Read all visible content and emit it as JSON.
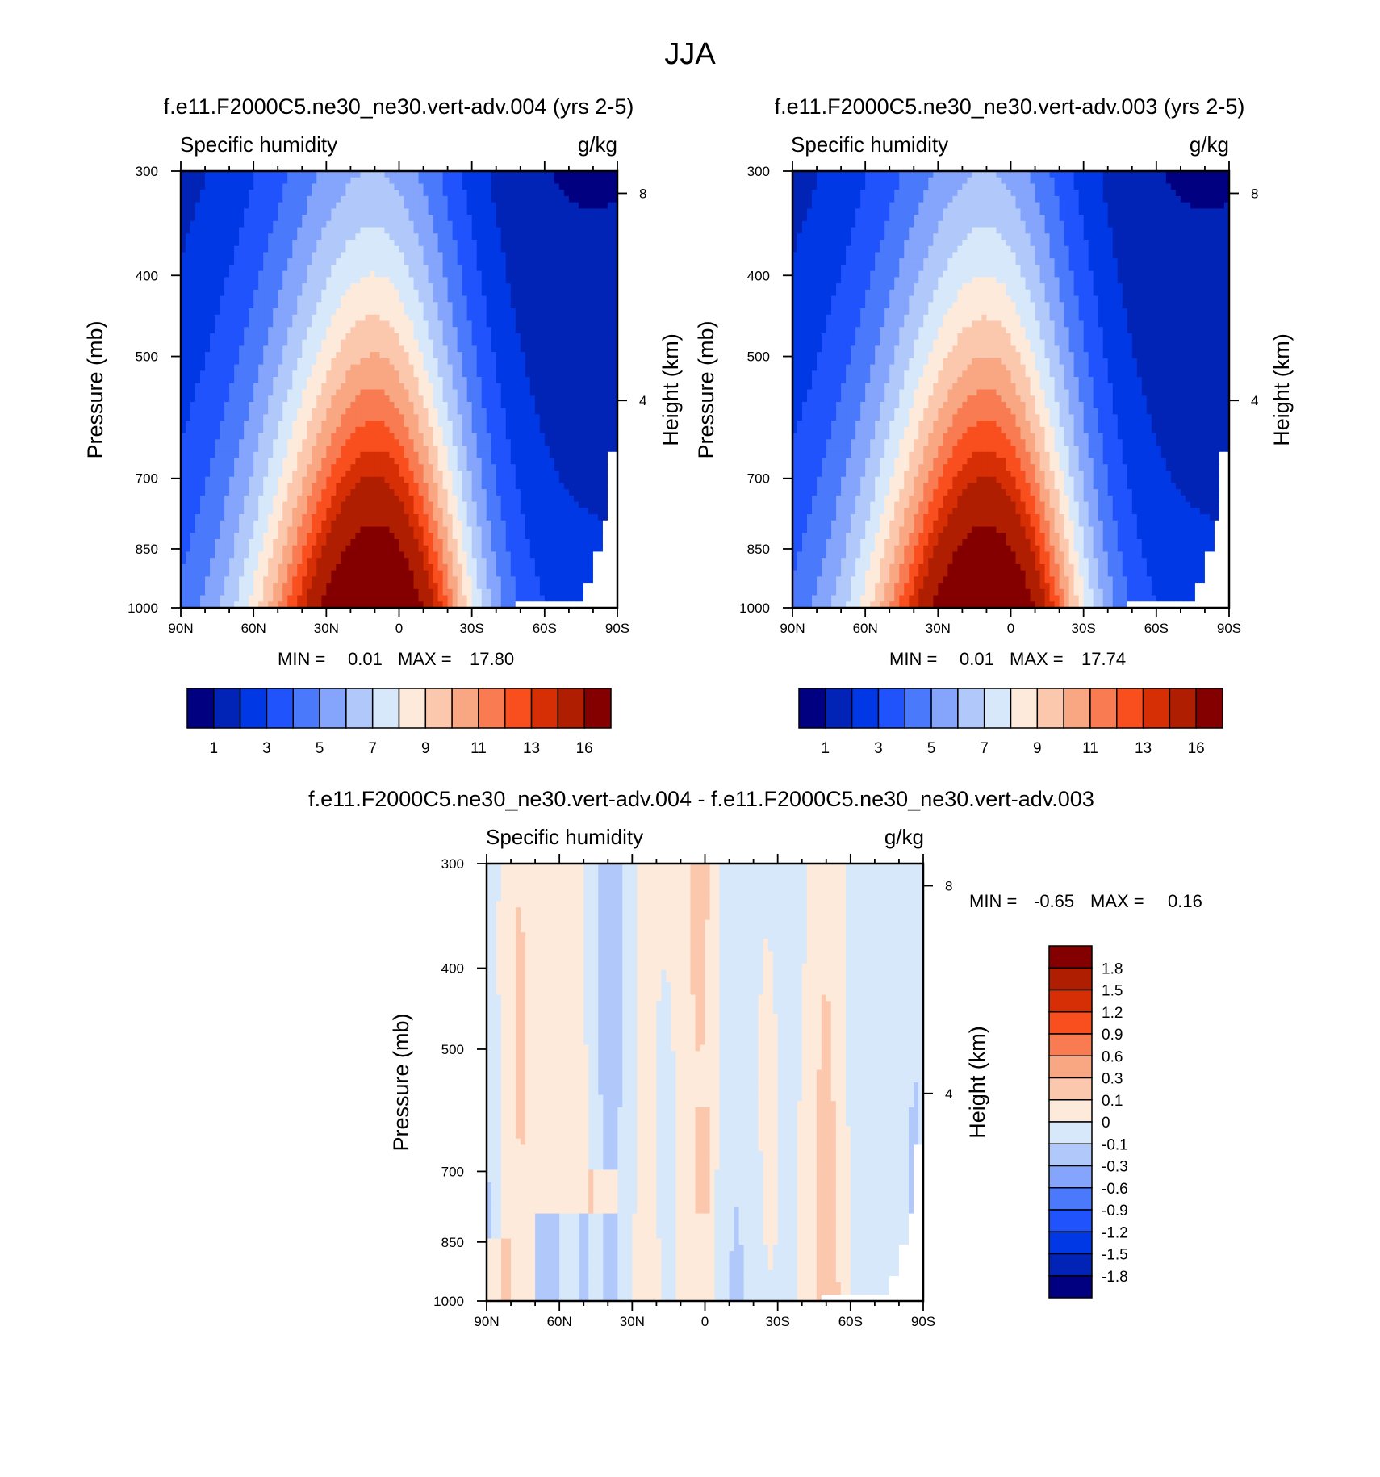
{
  "figure": {
    "title": "JJA"
  },
  "colors": {
    "abs_palette": [
      "#010080",
      "#0124B6",
      "#0138E6",
      "#2153FD",
      "#4A79FB",
      "#84A5FB",
      "#B1C8FA",
      "#D7E8FB",
      "#FDEADB",
      "#FBC8AE",
      "#F9A682",
      "#F87B52",
      "#F94F1F",
      "#D62F05",
      "#B01E02",
      "#840000"
    ],
    "diff_palette": [
      "#010080",
      "#0124B6",
      "#0138E6",
      "#2153FD",
      "#4A79FB",
      "#84A5FB",
      "#B1C8FA",
      "#D7E8FB",
      "#FDEADB",
      "#FBC8AE",
      "#F9A682",
      "#F87B52",
      "#F94F1F",
      "#D62F05",
      "#B01E02",
      "#840000"
    ]
  },
  "chart_data": [
    {
      "id": "panel1",
      "type": "heatmap",
      "title": "f.e11.F2000C5.ne30_ne30.vert-adv.004 (yrs 2-5)",
      "variable_label": "Specific humidity",
      "units_label": "g/kg",
      "ylabel": "Pressure (mb)",
      "ylabel_right": "Height (km)",
      "x_ticks": [
        "90N",
        "60N",
        "30N",
        "0",
        "30S",
        "60S",
        "90S"
      ],
      "x_range": [
        90,
        -90
      ],
      "y_ticks": [
        "300",
        "400",
        "500",
        "700",
        "850",
        "1000"
      ],
      "y_range": [
        300,
        1000
      ],
      "right_ticks": [
        "8",
        "4"
      ],
      "stats": {
        "min_label": "MIN =",
        "min_value": "0.01",
        "max_label": "MAX =",
        "max_value": "17.80"
      },
      "colorbar_labels": [
        "1",
        "3",
        "5",
        "7",
        "9",
        "11",
        "13",
        "16"
      ],
      "peak_value": 17.8,
      "peak_latitude": 10,
      "surface_value": 17.8
    },
    {
      "id": "panel2",
      "type": "heatmap",
      "title": "f.e11.F2000C5.ne30_ne30.vert-adv.003 (yrs 2-5)",
      "variable_label": "Specific humidity",
      "units_label": "g/kg",
      "ylabel": "Pressure (mb)",
      "ylabel_right": "Height (km)",
      "x_ticks": [
        "90N",
        "60N",
        "30N",
        "0",
        "30S",
        "60S",
        "90S"
      ],
      "x_range": [
        90,
        -90
      ],
      "y_ticks": [
        "300",
        "400",
        "500",
        "700",
        "850",
        "1000"
      ],
      "y_range": [
        300,
        1000
      ],
      "right_ticks": [
        "8",
        "4"
      ],
      "stats": {
        "min_label": "MIN =",
        "min_value": "0.01",
        "max_label": "MAX =",
        "max_value": "17.74"
      },
      "colorbar_labels": [
        "1",
        "3",
        "5",
        "7",
        "9",
        "11",
        "13",
        "16"
      ],
      "peak_value": 17.74,
      "peak_latitude": 10,
      "surface_value": 17.74
    },
    {
      "id": "panel3",
      "type": "heatmap",
      "title": "f.e11.F2000C5.ne30_ne30.vert-adv.004 - f.e11.F2000C5.ne30_ne30.vert-adv.003",
      "variable_label": "Specific humidity",
      "units_label": "g/kg",
      "ylabel": "Pressure (mb)",
      "ylabel_right": "Height (km)",
      "x_ticks": [
        "90N",
        "60N",
        "30N",
        "0",
        "30S",
        "60S",
        "90S"
      ],
      "x_range": [
        90,
        -90
      ],
      "y_ticks": [
        "300",
        "400",
        "500",
        "700",
        "850",
        "1000"
      ],
      "y_range": [
        300,
        1000
      ],
      "right_ticks": [
        "8",
        "4"
      ],
      "stats": {
        "min_label": "MIN =",
        "min_value": "-0.65",
        "max_label": "MAX =",
        "max_value": "0.16"
      },
      "colorbar_labels": [
        "1.8",
        "1.5",
        "1.2",
        "0.9",
        "0.6",
        "0.3",
        "0.1",
        "0",
        "-0.1",
        "-0.3",
        "-0.6",
        "-0.9",
        "-1.2",
        "-1.5",
        "-1.8"
      ],
      "value_range": [
        -0.65,
        0.16
      ]
    }
  ]
}
